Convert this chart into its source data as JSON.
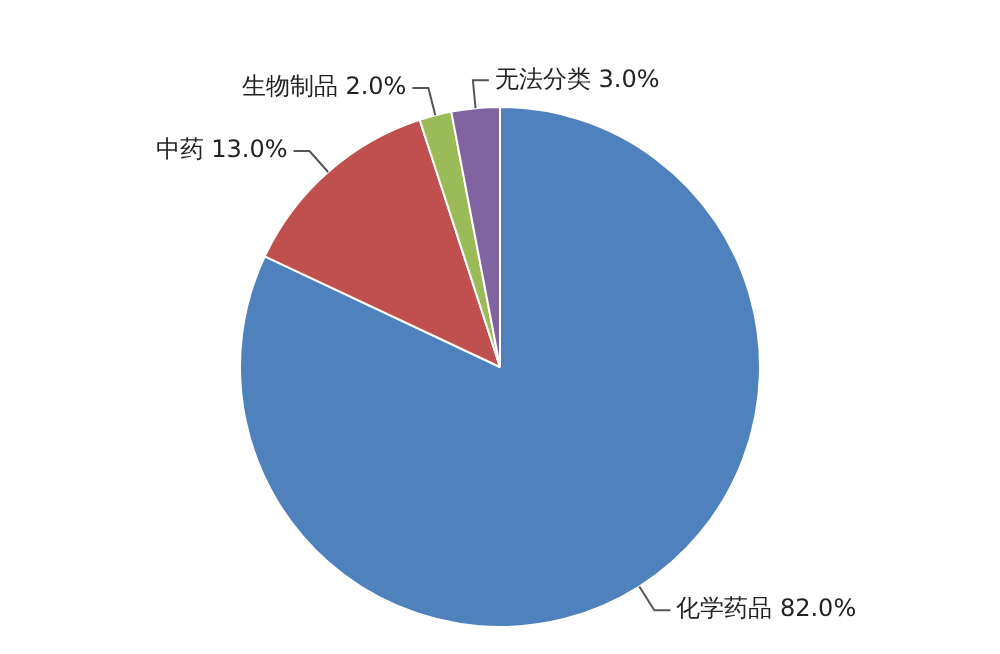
{
  "chart_data": {
    "type": "pie",
    "categories": [
      "化学药品",
      "中药",
      "生物制品",
      "无法分类"
    ],
    "values": [
      82,
      13,
      2,
      3
    ],
    "colors": [
      "#4f81bd",
      "#c0504d",
      "#9bbb59",
      "#8064a2"
    ],
    "value_labels": [
      "82.0%",
      "13.0%",
      "2.0%",
      "3.0%"
    ],
    "legend": false
  }
}
